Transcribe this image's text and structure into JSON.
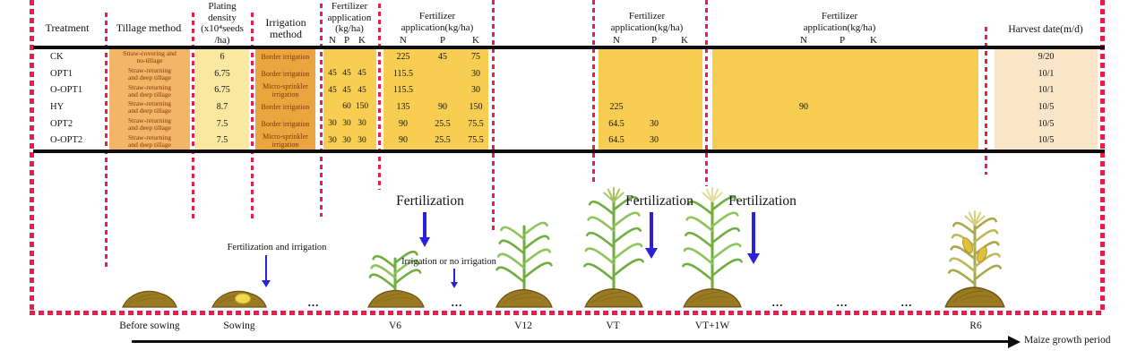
{
  "colors": {
    "dash_red": "#e61e4c",
    "tillage_bg": "#f3b568",
    "density_bg": "#fbe8a0",
    "irrigation_bg": "#eca43e",
    "fertilizer_bg": "#f8ce52",
    "harvest_bg": "#fae5c8",
    "arrow_blue": "#2b22d8"
  },
  "table": {
    "headers": {
      "treatment": "Treatment",
      "tillage": "Tillage method",
      "density": "Plating\ndensity\n(x10⁴seeds\n/ha)",
      "irrigation": "Irrigation\nmethod",
      "fert1": "Fertilizer\napplication\n(kg/ha)",
      "fert2": "Fertilizer\napplication(kg/ha)",
      "fert3": "Fertilizer\napplication(kg/ha)",
      "fert4": "Fertilizer\napplication(kg/ha)",
      "harvest": "Harvest date(m/d)",
      "n": "N",
      "p": "P",
      "k": "K"
    },
    "rows": [
      {
        "treatment": "CK",
        "tillage": "Straw-covering and\nno-tillage",
        "density": "6",
        "irrigation": "Border irrigation",
        "f1": [
          "",
          "",
          ""
        ],
        "f2": [
          "225",
          "45",
          "75"
        ],
        "f3": [
          "",
          ""
        ],
        "f4": "",
        "harvest": "9/20"
      },
      {
        "treatment": "OPT1",
        "tillage": "Straw-returning\nand deep tillage",
        "density": "6.75",
        "irrigation": "Border irrigation",
        "f1": [
          "45",
          "45",
          "45"
        ],
        "f2": [
          "115.5",
          "",
          "30"
        ],
        "f3": [
          "",
          ""
        ],
        "f4": "",
        "harvest": "10/1"
      },
      {
        "treatment": "O-OPT1",
        "tillage": "Straw-returning\nand deep tillage",
        "density": "6.75",
        "irrigation": "Micro-sprinkler\nirrigation",
        "f1": [
          "45",
          "45",
          "45"
        ],
        "f2": [
          "115.5",
          "",
          "30"
        ],
        "f3": [
          "",
          ""
        ],
        "f4": "",
        "harvest": "10/1"
      },
      {
        "treatment": "HY",
        "tillage": "Straw-returning\nand deep tillage",
        "density": "8.7",
        "irrigation": "Border irrigation",
        "f1": [
          "",
          "60",
          "150"
        ],
        "f2": [
          "135",
          "90",
          "150"
        ],
        "f3": [
          "225",
          ""
        ],
        "f4": "90",
        "harvest": "10/5"
      },
      {
        "treatment": "OPT2",
        "tillage": "Straw-returning\nand deep tillage",
        "density": "7.5",
        "irrigation": "Border irrigation",
        "f1": [
          "30",
          "30",
          "30"
        ],
        "f2": [
          "90",
          "25.5",
          "75.5"
        ],
        "f3": [
          "64.5",
          "30"
        ],
        "f4": "",
        "harvest": "10/5"
      },
      {
        "treatment": "O-OPT2",
        "tillage": "Straw-returning\nand deep tillage",
        "density": "7.5",
        "irrigation": "Micro-sprinkler\nirrigation",
        "f1": [
          "30",
          "30",
          "30"
        ],
        "f2": [
          "90",
          "25.5",
          "75.5"
        ],
        "f3": [
          "64.5",
          "30"
        ],
        "f4": "",
        "harvest": "10/5"
      }
    ]
  },
  "timeline": {
    "annotations": {
      "sowing": "Fertilization and irrigation",
      "v6_fert": "Fertilization",
      "v6_irrig": "Irrigation or no irrigation",
      "vt_fert": "Fertilization",
      "vt1w_fert": "Fertilization"
    },
    "stages": [
      {
        "label": "Before sowing",
        "icon": "soil-mound"
      },
      {
        "label": "Sowing",
        "icon": "soil-mound-with-seed"
      },
      {
        "label": "V6",
        "icon": "maize-seedling"
      },
      {
        "label": "V12",
        "icon": "maize-v12-plant"
      },
      {
        "label": "VT",
        "icon": "maize-tassel-plant"
      },
      {
        "label": "VT+1W",
        "icon": "maize-tassel-plant-pale"
      },
      {
        "label": "R6",
        "icon": "maize-mature-plant"
      }
    ],
    "ellipsis": "...",
    "axis_label": "Maize growth period"
  }
}
